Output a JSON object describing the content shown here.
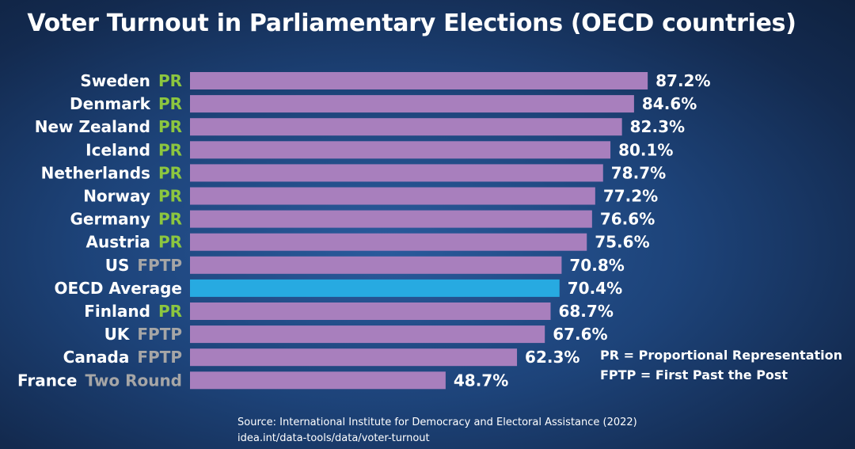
{
  "chart_data": {
    "type": "bar",
    "orientation": "horizontal",
    "title": "Voter Turnout in Parliamentary Elections (OECD countries)",
    "categories": [
      "Sweden",
      "Denmark",
      "New Zealand",
      "Iceland",
      "Netherlands",
      "Norway",
      "Germany",
      "Austria",
      "US",
      "OECD Average",
      "Finland",
      "UK",
      "Canada",
      "France"
    ],
    "systems": [
      "PR",
      "PR",
      "PR",
      "PR",
      "PR",
      "PR",
      "PR",
      "PR",
      "FPTP",
      "",
      "PR",
      "FPTP",
      "FPTP",
      "Two Round"
    ],
    "values": [
      87.2,
      84.6,
      82.3,
      80.1,
      78.7,
      77.2,
      76.6,
      75.6,
      70.8,
      70.4,
      68.7,
      67.6,
      62.3,
      48.7
    ],
    "value_labels": [
      "87.2%",
      "84.6%",
      "82.3%",
      "80.1%",
      "78.7%",
      "77.2%",
      "76.6%",
      "75.6%",
      "70.8%",
      "70.4%",
      "68.7%",
      "67.6%",
      "62.3%",
      "48.7%"
    ],
    "highlight_category": "OECD Average",
    "xlim": [
      0,
      100
    ],
    "xlabel": "",
    "ylabel": "",
    "grid": false
  },
  "colors": {
    "bar": "#a87fbd",
    "highlight_bar": "#27aae1",
    "pr": "#8cc63f",
    "other_system": "#a6a6a6"
  },
  "legend": {
    "pr": "PR = Proportional Representation",
    "fptp": "FPTP = First Past the Post"
  },
  "source": {
    "line1": "Source: International Institute for Democracy and Electoral Assistance (2022)",
    "line2": "idea.int/data-tools/data/voter-turnout"
  }
}
